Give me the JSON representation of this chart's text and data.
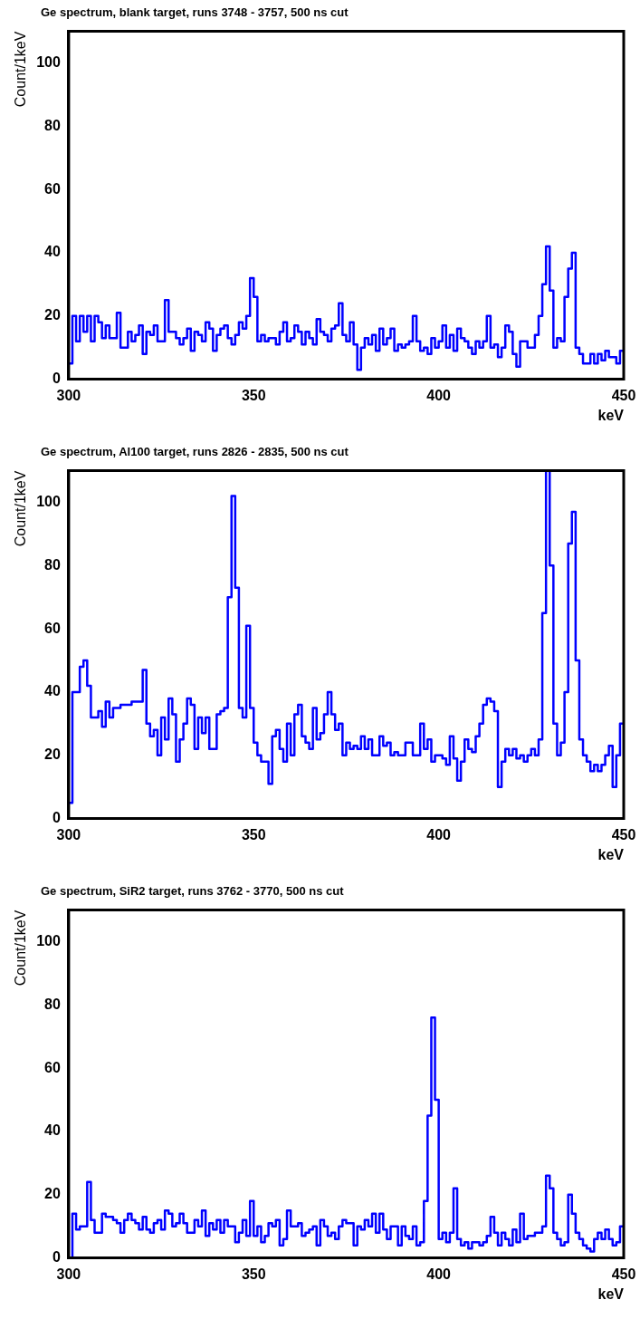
{
  "chart_data": [
    {
      "type": "histogram",
      "title": "Ge spectrum, blank target, runs 3748 - 3757, 500 ns cut",
      "xlabel": "keV",
      "ylabel": "Count/1keV",
      "color": "#0000ff",
      "xlim": [
        300,
        450
      ],
      "xticks": [
        300,
        350,
        400,
        450
      ],
      "ylim": [
        0,
        110
      ],
      "yticks": [
        0,
        20,
        40,
        60,
        80,
        100
      ],
      "grid": false,
      "bins": [
        300,
        301,
        302,
        303,
        304,
        305,
        306,
        307,
        308,
        309,
        310,
        311,
        312,
        313,
        314,
        315,
        316,
        317,
        318,
        319,
        320,
        321,
        322,
        323,
        324,
        325,
        326,
        327,
        328,
        329,
        330,
        331,
        332,
        333,
        334,
        335,
        336,
        337,
        338,
        339,
        340,
        341,
        342,
        343,
        344,
        345,
        346,
        347,
        348,
        349,
        350,
        351,
        352,
        353,
        354,
        355,
        356,
        357,
        358,
        359,
        360,
        361,
        362,
        363,
        364,
        365,
        366,
        367,
        368,
        369,
        370,
        371,
        372,
        373,
        374,
        375,
        376,
        377,
        378,
        379,
        380,
        381,
        382,
        383,
        384,
        385,
        386,
        387,
        388,
        389,
        390,
        391,
        392,
        393,
        394,
        395,
        396,
        397,
        398,
        399,
        400,
        401,
        402,
        403,
        404,
        405,
        406,
        407,
        408,
        409,
        410,
        411,
        412,
        413,
        414,
        415,
        416,
        417,
        418,
        419,
        420,
        421,
        422,
        423,
        424,
        425,
        426,
        427,
        428,
        429,
        430,
        431,
        432,
        433,
        434,
        435,
        436,
        437,
        438,
        439,
        440,
        441,
        442,
        443,
        444,
        445,
        446,
        447,
        448,
        449,
        450
      ],
      "values": [
        5,
        20,
        12,
        20,
        15,
        20,
        12,
        20,
        18,
        13,
        17,
        13,
        13,
        21,
        10,
        10,
        15,
        12,
        14,
        17,
        8,
        15,
        14,
        17,
        12,
        12,
        25,
        15,
        15,
        13,
        11,
        13,
        16,
        9,
        15,
        14,
        12,
        18,
        16,
        9,
        14,
        16,
        17,
        13,
        11,
        14,
        18,
        16,
        20,
        32,
        26,
        12,
        14,
        12,
        13,
        13,
        11,
        15,
        18,
        12,
        13,
        17,
        15,
        11,
        15,
        13,
        11,
        19,
        15,
        14,
        12,
        16,
        17,
        24,
        14,
        12,
        18,
        11,
        3,
        10,
        13,
        11,
        14,
        9,
        16,
        11,
        13,
        16,
        9,
        11,
        10,
        11,
        12,
        20,
        12,
        9,
        10,
        8,
        13,
        10,
        12,
        17,
        10,
        14,
        9,
        16,
        13,
        12,
        10,
        8,
        12,
        10,
        12,
        20,
        10,
        11,
        7,
        10,
        17,
        15,
        8,
        4,
        12,
        12,
        10,
        10,
        14,
        20,
        30,
        42,
        28,
        10,
        13,
        12,
        26,
        35,
        40,
        10,
        8,
        5,
        5,
        8,
        5,
        8,
        6,
        9,
        7,
        7,
        5,
        9
      ]
    },
    {
      "type": "histogram",
      "title": "Ge spectrum, Al100 target, runs 2826 - 2835, 500 ns cut",
      "xlabel": "keV",
      "ylabel": "Count/1keV",
      "color": "#0000ff",
      "xlim": [
        300,
        450
      ],
      "xticks": [
        300,
        350,
        400,
        450
      ],
      "ylim": [
        0,
        110
      ],
      "yticks": [
        0,
        20,
        40,
        60,
        80,
        100
      ],
      "grid": false,
      "bins": [
        300,
        301,
        302,
        303,
        304,
        305,
        306,
        307,
        308,
        309,
        310,
        311,
        312,
        313,
        314,
        315,
        316,
        317,
        318,
        319,
        320,
        321,
        322,
        323,
        324,
        325,
        326,
        327,
        328,
        329,
        330,
        331,
        332,
        333,
        334,
        335,
        336,
        337,
        338,
        339,
        340,
        341,
        342,
        343,
        344,
        345,
        346,
        347,
        348,
        349,
        350,
        351,
        352,
        353,
        354,
        355,
        356,
        357,
        358,
        359,
        360,
        361,
        362,
        363,
        364,
        365,
        366,
        367,
        368,
        369,
        370,
        371,
        372,
        373,
        374,
        375,
        376,
        377,
        378,
        379,
        380,
        381,
        382,
        383,
        384,
        385,
        386,
        387,
        388,
        389,
        390,
        391,
        392,
        393,
        394,
        395,
        396,
        397,
        398,
        399,
        400,
        401,
        402,
        403,
        404,
        405,
        406,
        407,
        408,
        409,
        410,
        411,
        412,
        413,
        414,
        415,
        416,
        417,
        418,
        419,
        420,
        421,
        422,
        423,
        424,
        425,
        426,
        427,
        428,
        429,
        430,
        431,
        432,
        433,
        434,
        435,
        436,
        437,
        438,
        439,
        440,
        441,
        442,
        443,
        444,
        445,
        446,
        447,
        448,
        449,
        450
      ],
      "values": [
        5,
        40,
        40,
        48,
        50,
        42,
        32,
        32,
        34,
        29,
        37,
        32,
        35,
        35,
        36,
        36,
        36,
        37,
        37,
        37,
        47,
        30,
        26,
        28,
        20,
        32,
        25,
        38,
        33,
        18,
        25,
        30,
        38,
        36,
        22,
        32,
        27,
        32,
        22,
        22,
        33,
        34,
        35,
        70,
        102,
        73,
        35,
        32,
        61,
        35,
        24,
        20,
        18,
        18,
        11,
        26,
        28,
        22,
        18,
        30,
        20,
        33,
        36,
        26,
        24,
        22,
        35,
        25,
        27,
        33,
        40,
        33,
        28,
        30,
        20,
        24,
        22,
        23,
        22,
        26,
        22,
        25,
        20,
        20,
        26,
        23,
        24,
        20,
        21,
        20,
        20,
        24,
        24,
        20,
        20,
        30,
        22,
        25,
        18,
        20,
        20,
        19,
        17,
        26,
        19,
        12,
        18,
        25,
        22,
        21,
        26,
        30,
        36,
        38,
        37,
        34,
        10,
        18,
        22,
        20,
        22,
        19,
        20,
        18,
        20,
        22,
        20,
        25,
        65,
        110,
        80,
        30,
        20,
        24,
        40,
        87,
        97,
        50,
        25,
        20,
        18,
        15,
        17,
        15,
        17,
        20,
        23,
        10,
        20,
        30
      ]
    },
    {
      "type": "histogram",
      "title": "Ge spectrum, SiR2 target, runs 3762 - 3770, 500 ns cut",
      "xlabel": "keV",
      "ylabel": "Count/1keV",
      "color": "#0000ff",
      "xlim": [
        300,
        450
      ],
      "xticks": [
        300,
        350,
        400,
        450
      ],
      "ylim": [
        0,
        110
      ],
      "yticks": [
        0,
        20,
        40,
        60,
        80,
        100
      ],
      "grid": false,
      "bins": [
        300,
        301,
        302,
        303,
        304,
        305,
        306,
        307,
        308,
        309,
        310,
        311,
        312,
        313,
        314,
        315,
        316,
        317,
        318,
        319,
        320,
        321,
        322,
        323,
        324,
        325,
        326,
        327,
        328,
        329,
        330,
        331,
        332,
        333,
        334,
        335,
        336,
        337,
        338,
        339,
        340,
        341,
        342,
        343,
        344,
        345,
        346,
        347,
        348,
        349,
        350,
        351,
        352,
        353,
        354,
        355,
        356,
        357,
        358,
        359,
        360,
        361,
        362,
        363,
        364,
        365,
        366,
        367,
        368,
        369,
        370,
        371,
        372,
        373,
        374,
        375,
        376,
        377,
        378,
        379,
        380,
        381,
        382,
        383,
        384,
        385,
        386,
        387,
        388,
        389,
        390,
        391,
        392,
        393,
        394,
        395,
        396,
        397,
        398,
        399,
        400,
        401,
        402,
        403,
        404,
        405,
        406,
        407,
        408,
        409,
        410,
        411,
        412,
        413,
        414,
        415,
        416,
        417,
        418,
        419,
        420,
        421,
        422,
        423,
        424,
        425,
        426,
        427,
        428,
        429,
        430,
        431,
        432,
        433,
        434,
        435,
        436,
        437,
        438,
        439,
        440,
        441,
        442,
        443,
        444,
        445,
        446,
        447,
        448,
        449,
        450
      ],
      "values": [
        0,
        14,
        9,
        10,
        10,
        24,
        12,
        8,
        8,
        14,
        13,
        13,
        12,
        11,
        8,
        12,
        14,
        12,
        11,
        9,
        13,
        9,
        8,
        11,
        12,
        9,
        15,
        14,
        10,
        11,
        14,
        11,
        8,
        8,
        12,
        10,
        15,
        7,
        11,
        9,
        12,
        8,
        12,
        10,
        10,
        5,
        8,
        12,
        7,
        18,
        7,
        10,
        5,
        7,
        11,
        10,
        12,
        4,
        6,
        15,
        10,
        10,
        11,
        7,
        8,
        9,
        10,
        4,
        12,
        10,
        7,
        8,
        6,
        10,
        12,
        11,
        11,
        4,
        10,
        9,
        12,
        10,
        14,
        8,
        14,
        9,
        6,
        10,
        10,
        4,
        10,
        7,
        6,
        10,
        4,
        5,
        18,
        45,
        76,
        50,
        6,
        8,
        5,
        8,
        22,
        6,
        4,
        5,
        3,
        5,
        5,
        4,
        5,
        7,
        13,
        8,
        4,
        8,
        6,
        4,
        9,
        5,
        14,
        6,
        7,
        7,
        8,
        8,
        10,
        26,
        22,
        8,
        6,
        4,
        5,
        20,
        14,
        8,
        6,
        4,
        3,
        2,
        6,
        8,
        6,
        9,
        6,
        4,
        5,
        10
      ]
    }
  ]
}
